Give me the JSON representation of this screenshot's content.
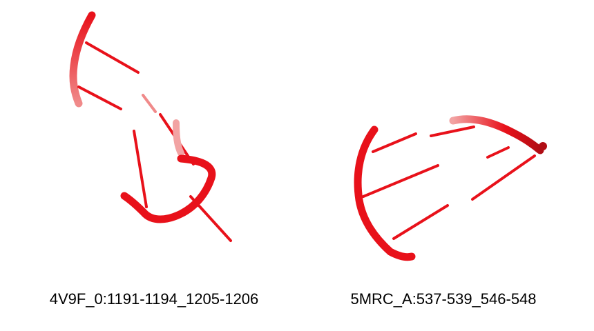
{
  "colors": {
    "structure": "#e8111a",
    "background": "#ffffff"
  },
  "panels": [
    {
      "caption": "4V9F_0:1191-1194_1205-1206"
    },
    {
      "caption": "5MRC_A:537-539_546-548"
    }
  ]
}
